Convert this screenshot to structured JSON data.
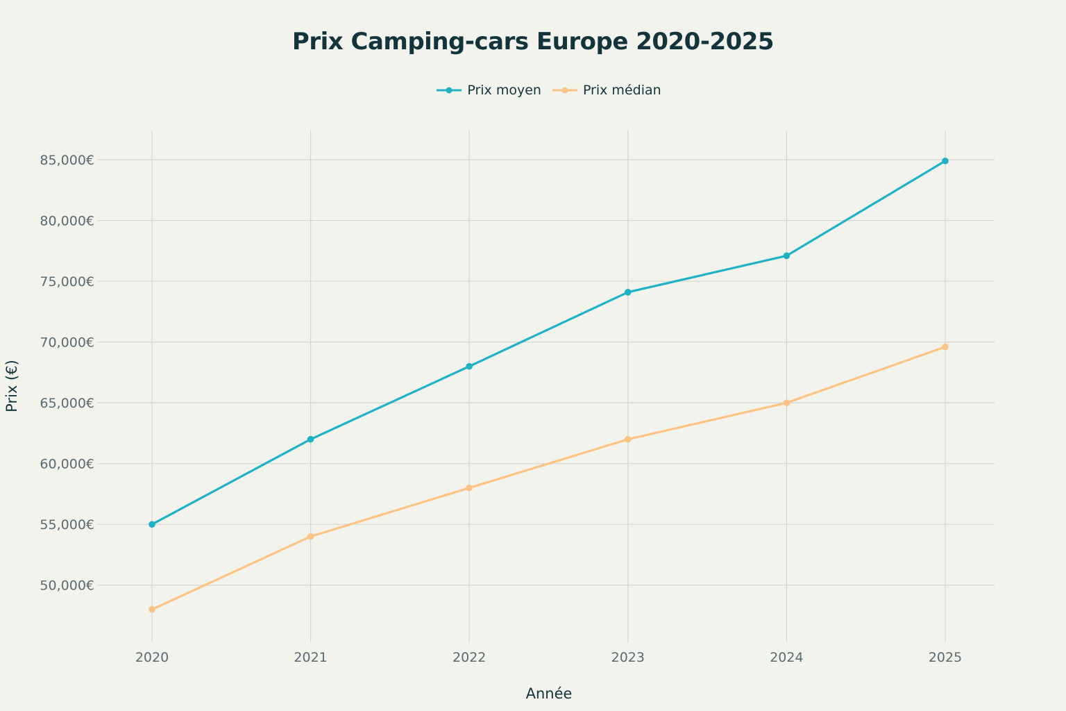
{
  "chart_data": {
    "type": "line",
    "title": "Prix Camping-cars Europe 2020-2025",
    "xlabel": "Année",
    "ylabel": "Prix (€)",
    "x": [
      "2020",
      "2021",
      "2022",
      "2023",
      "2024",
      "2025"
    ],
    "ylim": [
      45300,
      87400
    ],
    "yticks": [
      50000,
      55000,
      60000,
      65000,
      70000,
      75000,
      80000,
      85000
    ],
    "ytick_labels": [
      "50,000€",
      "55,000€",
      "60,000€",
      "65,000€",
      "70,000€",
      "75,000€",
      "80,000€",
      "85,000€"
    ],
    "grid": true,
    "legend_placement": "top-center",
    "series": [
      {
        "name": "Prix moyen",
        "color": "#1fb2c4",
        "values": [
          55000,
          62000,
          68000,
          74100,
          77100,
          84900
        ]
      },
      {
        "name": "Prix médian",
        "color": "#fbc384",
        "values": [
          48000,
          54000,
          58000,
          62000,
          65000,
          69600
        ]
      }
    ]
  }
}
